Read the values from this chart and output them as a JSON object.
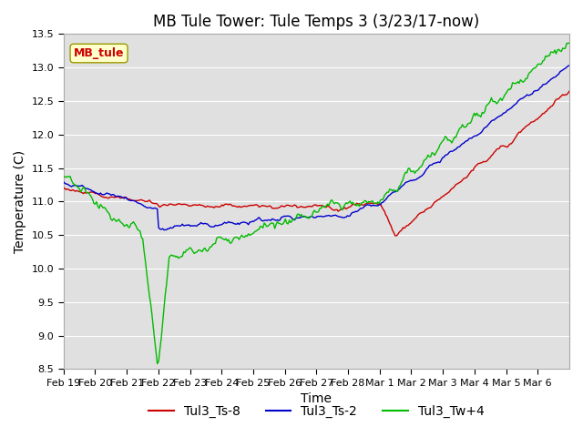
{
  "title": "MB Tule Tower: Tule Temps 3 (3/23/17-now)",
  "xlabel": "Time",
  "ylabel": "Temperature (C)",
  "ylim": [
    8.5,
    13.5
  ],
  "yticks": [
    8.5,
    9.0,
    9.5,
    10.0,
    10.5,
    11.0,
    11.5,
    12.0,
    12.5,
    13.0,
    13.5
  ],
  "xtick_labels": [
    "Feb 19",
    "Feb 20",
    "Feb 21",
    "Feb 22",
    "Feb 23",
    "Feb 24",
    "Feb 25",
    "Feb 26",
    "Feb 27",
    "Feb 28",
    "Mar 1",
    "Mar 2",
    "Mar 3",
    "Mar 4",
    "Mar 5",
    "Mar 6"
  ],
  "legend_labels": [
    "Tul3_Ts-8",
    "Tul3_Ts-2",
    "Tul3_Tw+4"
  ],
  "legend_colors": [
    "#cc0000",
    "#0000cc",
    "#00bb00"
  ],
  "watermark_text": "MB_tule",
  "watermark_color": "#cc0000",
  "watermark_bg": "#ffffcc",
  "bg_color": "#e0e0e0",
  "line_width": 1.0,
  "title_fontsize": 12,
  "axis_fontsize": 10,
  "tick_fontsize": 8
}
